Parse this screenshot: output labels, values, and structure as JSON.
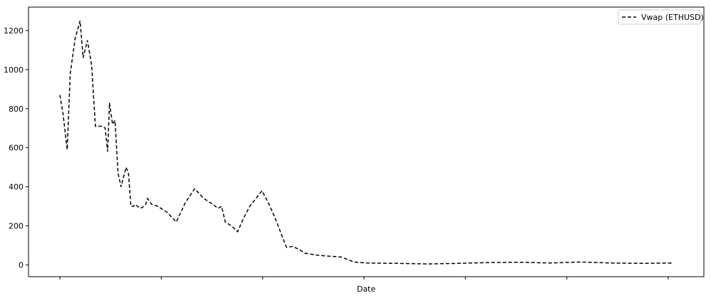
{
  "chart_data": {
    "type": "line",
    "title": "",
    "xlabel": "Date",
    "ylabel": "",
    "ylim": [
      -60,
      1320
    ],
    "yticks": [
      0,
      200,
      400,
      600,
      800,
      1000,
      1200
    ],
    "xticks_count": 7,
    "x_tick_labels_shown": false,
    "grid": false,
    "legend": {
      "placement": "top-right",
      "entries": [
        "Vwap (ETHUSD)"
      ]
    },
    "series": [
      {
        "name": "Vwap (ETHUSD)",
        "color": "#000000",
        "line_style": "dashed",
        "x": [
          0,
          0.005,
          0.012,
          0.017,
          0.025,
          0.033,
          0.038,
          0.045,
          0.052,
          0.058,
          0.064,
          0.07,
          0.074,
          0.078,
          0.081,
          0.086,
          0.09,
          0.095,
          0.1,
          0.104,
          0.108,
          0.112,
          0.116,
          0.12,
          0.123,
          0.127,
          0.131,
          0.135,
          0.14,
          0.143,
          0.15,
          0.16,
          0.175,
          0.19,
          0.205,
          0.22,
          0.235,
          0.25,
          0.258,
          0.264,
          0.27,
          0.28,
          0.29,
          0.3,
          0.31,
          0.32,
          0.33,
          0.34,
          0.35,
          0.36,
          0.37,
          0.38,
          0.39,
          0.4,
          0.42,
          0.44,
          0.46,
          0.48,
          0.5,
          0.55,
          0.6,
          0.65,
          0.7,
          0.75,
          0.8,
          0.85,
          0.9,
          0.95,
          1.0
        ],
        "values": [
          870,
          780,
          590,
          980,
          1160,
          1250,
          1060,
          1150,
          1020,
          710,
          710,
          710,
          700,
          580,
          830,
          720,
          740,
          470,
          400,
          450,
          500,
          470,
          300,
          300,
          310,
          300,
          290,
          295,
          310,
          340,
          310,
          300,
          270,
          220,
          320,
          390,
          340,
          310,
          290,
          300,
          220,
          200,
          170,
          240,
          300,
          340,
          380,
          320,
          250,
          170,
          90,
          95,
          80,
          60,
          50,
          45,
          40,
          15,
          10,
          8,
          5,
          8,
          12,
          14,
          10,
          15,
          10,
          8,
          10
        ]
      }
    ]
  }
}
